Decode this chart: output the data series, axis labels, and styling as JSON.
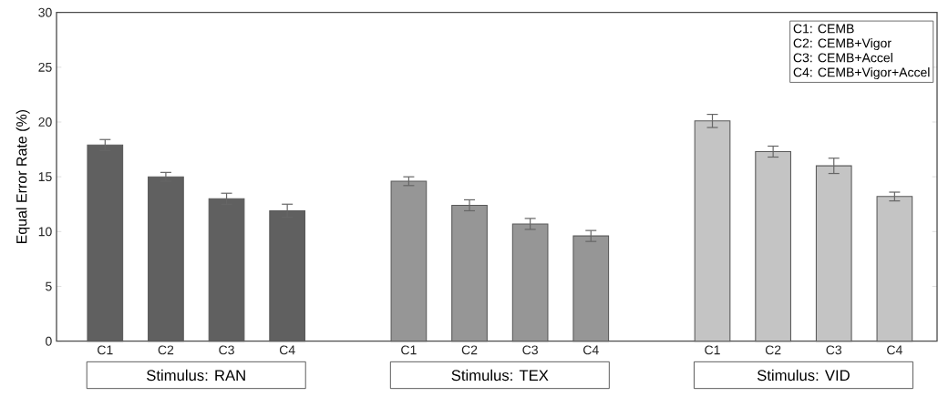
{
  "chart_data": {
    "type": "bar",
    "ylabel": "Equal Error Rate (%)",
    "categories": [
      "C1",
      "C2",
      "C3",
      "C4",
      null,
      "C1",
      "C2",
      "C3",
      "C4",
      null,
      "C1",
      "C2",
      "C3",
      "C4"
    ],
    "values": [
      17.9,
      15.0,
      13.0,
      11.9,
      null,
      14.6,
      12.4,
      10.7,
      9.6,
      null,
      20.1,
      17.3,
      16.0,
      13.2
    ],
    "errors": [
      0.5,
      0.4,
      0.5,
      0.6,
      null,
      0.4,
      0.5,
      0.5,
      0.5,
      null,
      0.6,
      0.5,
      0.7,
      0.4
    ],
    "colors": [
      "#606060",
      "#606060",
      "#606060",
      "#606060",
      null,
      "#969696",
      "#969696",
      "#969696",
      "#969696",
      null,
      "#c4c4c4",
      "#c4c4c4",
      "#c4c4c4",
      "#c4c4c4"
    ],
    "ylim": [
      0,
      30
    ],
    "yticks": [
      0,
      5,
      10,
      15,
      20,
      25,
      30
    ],
    "grid": false,
    "annotations": [
      "C1: CEMB",
      "C2: CEMB+Vigor",
      "C3: CEMB+Accel",
      "C4: CEMB+Vigor+Accel",
      "Stimulus: RAN",
      "Stimulus: TEX",
      "Stimulus: VID"
    ]
  }
}
